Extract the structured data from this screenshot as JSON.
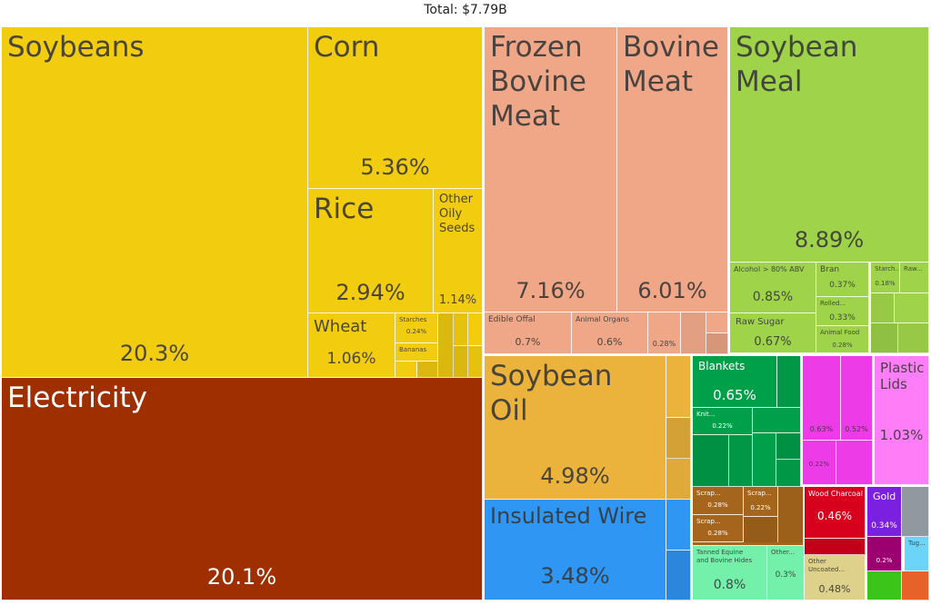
{
  "chart": {
    "total": "Total: $7.79B"
  },
  "colors": {
    "vegetable": "#f2cc0f",
    "mineral": "#a02f00",
    "animal": "#efa788",
    "foodstuffs": "#9fd44a",
    "oils": "#ebb33c",
    "machines": "#2f96f3",
    "textiles": "#00a04a",
    "chemicals": "#ee3be8",
    "plastics": "#ff7ef7",
    "paper": "#a5651c",
    "hides": "#73f0aa",
    "wood": "#ddd18b",
    "metals": "#d7001d",
    "gold": "#7b1fe0",
    "gold_dark": "#9c0070",
    "misc_gray": "#9aa0a8",
    "tug": "#6bd4f8",
    "green": "#3bc41a",
    "orange": "#ff6d2d"
  },
  "chart_data": {
    "type": "treemap",
    "title": "Total: $7.79B",
    "tiles": [
      {
        "label": "Soybeans",
        "value": "20.3%"
      },
      {
        "label": "Electricity",
        "value": "20.1%"
      },
      {
        "label": "Corn",
        "value": "5.36%"
      },
      {
        "label": "Rice",
        "value": "2.94%"
      },
      {
        "label": "Other\nOily\nSeeds",
        "value": "1.14%"
      },
      {
        "label": "Wheat",
        "value": "1.06%"
      },
      {
        "label": "Starches",
        "value": "0.24%"
      },
      {
        "label": "Bananas",
        "value": ""
      },
      {
        "label": "Frozen\nBovine\nMeat",
        "value": "7.16%"
      },
      {
        "label": "Bovine\nMeat",
        "value": "6.01%"
      },
      {
        "label": "Edible Offal",
        "value": "0.7%"
      },
      {
        "label": "Animal Organs",
        "value": "0.6%"
      },
      {
        "label": "",
        "value": "0.28%"
      },
      {
        "label": "Soybean\nMeal",
        "value": "8.89%"
      },
      {
        "label": "Alcohol > 80% ABV",
        "value": "0.85%"
      },
      {
        "label": "Bran",
        "value": "0.37%"
      },
      {
        "label": "Rolled...",
        "value": "0.33%"
      },
      {
        "label": "Starch...",
        "value": "0.18%"
      },
      {
        "label": "Raw...",
        "value": ""
      },
      {
        "label": "Raw Sugar",
        "value": "0.67%"
      },
      {
        "label": "Animal Food",
        "value": "0.28%"
      },
      {
        "label": "Soybean\nOil",
        "value": "4.98%"
      },
      {
        "label": "Insulated Wire",
        "value": "3.48%"
      },
      {
        "label": "Blankets",
        "value": "0.65%"
      },
      {
        "label": "Knit...",
        "value": "0.22%"
      },
      {
        "label": "",
        "value": "0.63%"
      },
      {
        "label": "",
        "value": "0.52%"
      },
      {
        "label": "",
        "value": "0.22%"
      },
      {
        "label": "Plastic\nLids",
        "value": "1.03%"
      },
      {
        "label": "Scrap...",
        "value": "0.28%"
      },
      {
        "label": "Scrap...",
        "value": "0.22%"
      },
      {
        "label": "Scrap...",
        "value": "0.28%"
      },
      {
        "label": "Wood Charcoal",
        "value": "0.46%"
      },
      {
        "label": "Gold",
        "value": "0.34%"
      },
      {
        "label": "",
        "value": "0.2%"
      },
      {
        "label": "Tug...",
        "value": ""
      },
      {
        "label": "Tanned Equine\nand Bovine Hides",
        "value": "0.8%"
      },
      {
        "label": "Other...",
        "value": "0.3%"
      },
      {
        "label": "Other\nUncoated...",
        "value": "0.48%"
      }
    ]
  }
}
